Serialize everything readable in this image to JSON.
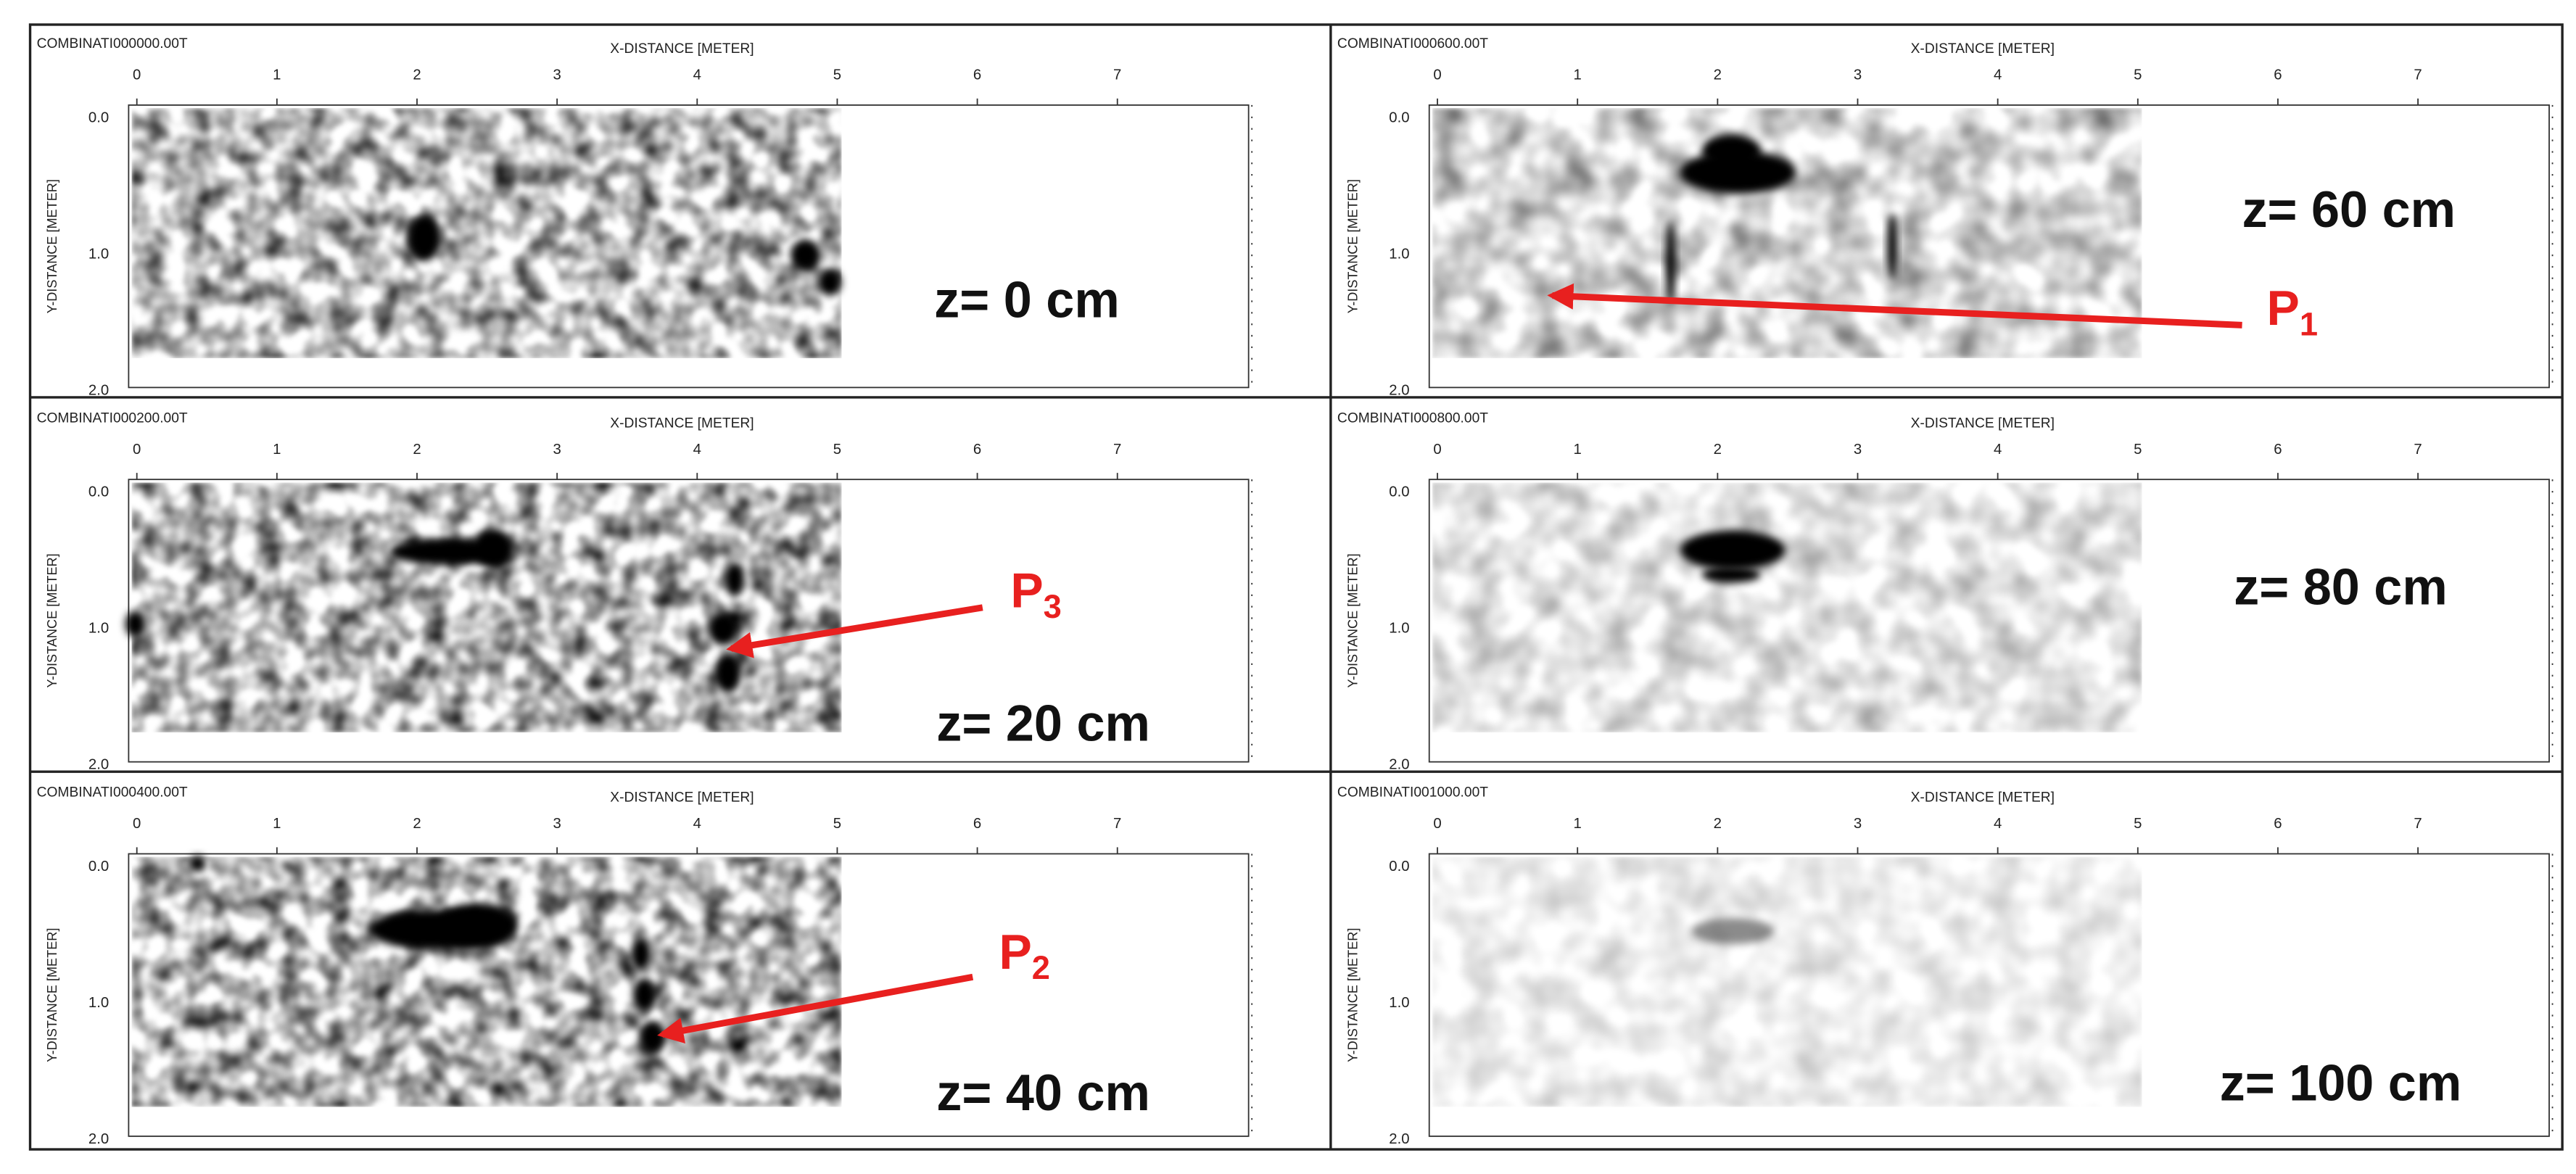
{
  "panels": [
    {
      "file": "COMBINATI000000.00T",
      "x_axis_label": "X-DISTANCE [METER]",
      "y_axis_label": "Y-DISTANCE [METER]",
      "x_ticks": [
        "0",
        "1",
        "2",
        "3",
        "4",
        "5",
        "6",
        "7"
      ],
      "y_ticks": [
        "0.0",
        "1.0",
        "2.0"
      ],
      "depth": "z= 0 cm"
    },
    {
      "file": "COMBINATI000200.00T",
      "x_axis_label": "X-DISTANCE [METER]",
      "y_axis_label": "Y-DISTANCE [METER]",
      "x_ticks": [
        "0",
        "1",
        "2",
        "3",
        "4",
        "5",
        "6",
        "7"
      ],
      "y_ticks": [
        "0.0",
        "1.0",
        "2.0"
      ],
      "depth": "z= 20 cm",
      "marker": {
        "label": "P",
        "sub": "3"
      }
    },
    {
      "file": "COMBINATI000400.00T",
      "x_axis_label": "X-DISTANCE [METER]",
      "y_axis_label": "Y-DISTANCE [METER]",
      "x_ticks": [
        "0",
        "1",
        "2",
        "3",
        "4",
        "5",
        "6",
        "7"
      ],
      "y_ticks": [
        "0.0",
        "1.0",
        "2.0"
      ],
      "depth": "z= 40 cm",
      "marker": {
        "label": "P",
        "sub": "2"
      }
    },
    {
      "file": "COMBINATI000600.00T",
      "x_axis_label": "X-DISTANCE [METER]",
      "y_axis_label": "Y-DISTANCE [METER]",
      "x_ticks": [
        "0",
        "1",
        "2",
        "3",
        "4",
        "5",
        "6",
        "7"
      ],
      "y_ticks": [
        "0.0",
        "1.0",
        "2.0"
      ],
      "depth": "z= 60 cm",
      "marker": {
        "label": "P",
        "sub": "1"
      }
    },
    {
      "file": "COMBINATI000800.00T",
      "x_axis_label": "X-DISTANCE [METER]",
      "y_axis_label": "Y-DISTANCE [METER]",
      "x_ticks": [
        "0",
        "1",
        "2",
        "3",
        "4",
        "5",
        "6",
        "7"
      ],
      "y_ticks": [
        "0.0",
        "1.0",
        "2.0"
      ],
      "depth": "z= 80 cm"
    },
    {
      "file": "COMBINATI001000.00T",
      "x_axis_label": "X-DISTANCE [METER]",
      "y_axis_label": "Y-DISTANCE [METER]",
      "x_ticks": [
        "0",
        "1",
        "2",
        "3",
        "4",
        "5",
        "6",
        "7"
      ],
      "y_ticks": [
        "0.0",
        "1.0",
        "2.0"
      ],
      "depth": "z= 100 cm"
    }
  ]
}
